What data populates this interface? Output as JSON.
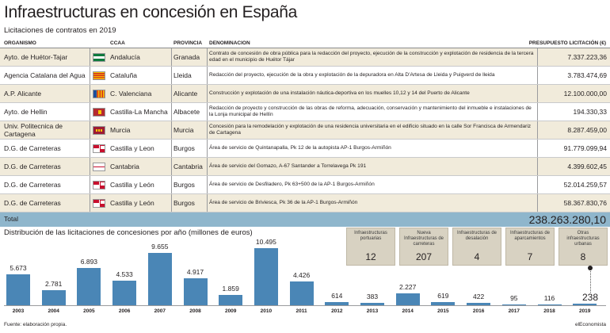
{
  "title": "Infraestructuras en concesión en España",
  "subtitle": "Licitaciones de contratos en 2019",
  "table": {
    "headers": {
      "organismo": "ORGANISMO",
      "ccaa": "CCAA",
      "provincia": "PROVINCIA",
      "denominacion": "DENOMINACION",
      "presupuesto": "PRESUPUESTO LICITACIÓN (€)"
    },
    "rows": [
      {
        "organismo": "Ayto. de Huétor-Tajar",
        "flag": "andalucia-flag-icon",
        "ccaa": "Andalucía",
        "provincia": "Granada",
        "denominacion": "Contrato de concesión de obra pública para la redacción del proyecto, ejecución de la construcción y explotación de residencia de la tercera edad en el municipio de Huétor Tájar",
        "presupuesto": "7.337.223,36"
      },
      {
        "organismo": "Agencia Catalana del Agua",
        "flag": "cataluna-flag-icon",
        "ccaa": "Cataluña",
        "provincia": "Lleida",
        "denominacion": "Redacción del proyecto, ejecución de la obra y explotación de la depuradora en Alta D'Artesa de Lleida y Puigverd de lleida",
        "presupuesto": "3.783.474,69"
      },
      {
        "organismo": "A.P. Alicante",
        "flag": "valenciana-flag-icon",
        "ccaa": "C. Valenciana",
        "provincia": "Alicante",
        "denominacion": "Construcción y explotación de una instalación náutica-deportiva en los muelles 10,12 y 14 del Puerto de Alicante",
        "presupuesto": "12.100.000,00"
      },
      {
        "organismo": "Ayto. de Hellin",
        "flag": "castilla-la-mancha-flag-icon",
        "ccaa": "Castilla-La Mancha",
        "provincia": "Albacete",
        "denominacion": "Redacción de proyecto y construcción de las obras de reforma, adecuación, conservación y mantenimiento del inmueble e instalaciones de la Lonja municipal de Hellín",
        "presupuesto": "194.330,33"
      },
      {
        "organismo": "Univ. Politecnica de Cartagena",
        "flag": "murcia-flag-icon",
        "ccaa": "Murcia",
        "provincia": "Murcia",
        "denominacion": "Concesión para la remodelación y explotación de una residencia universitaria en el edificio situado en la calle Sor Francisca de Armendariz de Cartagena",
        "presupuesto": "8.287.459,00"
      },
      {
        "organismo": "D.G. de Carreteras",
        "flag": "castilla-leon-flag-icon",
        "ccaa": "Castilla y Leon",
        "provincia": "Burgos",
        "denominacion": "Área de servicio de Quintanapalla, Pk 12 de la autopista AP-1 Burgos-Armiñón",
        "presupuesto": "91.779.099,94"
      },
      {
        "organismo": "D.G. de Carreteras",
        "flag": "cantabria-flag-icon",
        "ccaa": "Cantabria",
        "provincia": "Cantabria",
        "denominacion": "Área de servicio del Gomazo, A-67 Santander a Torrelavega Pk 191",
        "presupuesto": "4.399.602,45"
      },
      {
        "organismo": "D.G. de Carreteras",
        "flag": "castilla-leon-flag-icon",
        "ccaa": "Castilla y León",
        "provincia": "Burgos",
        "denominacion": "Área de servicio de Desfiladero, Pk 63+500 de la AP-1 Burgos-Armiñón",
        "presupuesto": "52.014.259,57"
      },
      {
        "organismo": "D.G. de Carreteras",
        "flag": "castilla-leon-flag-icon",
        "ccaa": "Castilla y León",
        "provincia": "Burgos",
        "denominacion": "Área de servicio de Briviesca, Pk 36 de la AP-1 Burgos-Armiñón",
        "presupuesto": "58.367.830,76"
      }
    ],
    "total_label": "Total",
    "total_value": "238.263.280,10"
  },
  "chart_title": "Distribución de las licitaciones de concesiones por año (millones de euros)",
  "chart_data": {
    "type": "bar",
    "title": "Distribución de las licitaciones de concesiones por año (millones de euros)",
    "categories": [
      "2003",
      "2004",
      "2005",
      "2006",
      "2007",
      "2008",
      "2009",
      "2010",
      "2011",
      "2012",
      "2013",
      "2014",
      "2015",
      "2016",
      "2017",
      "2018",
      "2019"
    ],
    "values": [
      5673,
      2781,
      6893,
      4533,
      9655,
      4917,
      1859,
      10495,
      4426,
      614,
      383,
      2227,
      619,
      422,
      95,
      116,
      238
    ],
    "value_labels": [
      "5.673",
      "2.781",
      "6.893",
      "4.533",
      "9.655",
      "4.917",
      "1.859",
      "10.495",
      "4.426",
      "614",
      "383",
      "2.227",
      "619",
      "422",
      "95",
      "116",
      "238"
    ],
    "ylim": [
      0,
      10495
    ],
    "grid": false,
    "bar_color": "#4a86b6"
  },
  "summary": [
    {
      "label": "Infraestructuras portuarias",
      "value": "12"
    },
    {
      "label": "Nueva Infraestructuras de carreteras",
      "value": "207"
    },
    {
      "label": "Infraestructuras de desalación",
      "value": "4"
    },
    {
      "label": "Infraestructuras de aparcamientos",
      "value": "7"
    },
    {
      "label": "Otras infraestructuras urbanas",
      "value": "8"
    }
  ],
  "source": "Fuente: elaboración propia.",
  "credit": "elEconomista"
}
